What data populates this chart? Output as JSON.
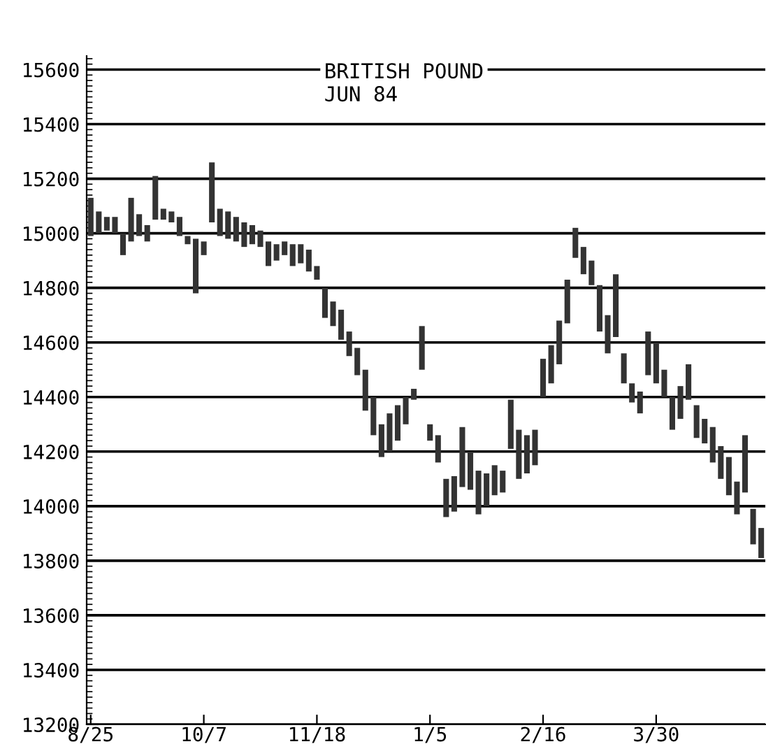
{
  "chart_data": {
    "type": "bar",
    "title": "BRITISH POUND",
    "subtitle": "JUN 84",
    "categories": [
      "8/25",
      null,
      null,
      null,
      null,
      null,
      null,
      null,
      null,
      null,
      null,
      null,
      null,
      null,
      "10/7",
      null,
      null,
      null,
      null,
      null,
      null,
      null,
      null,
      null,
      null,
      null,
      null,
      null,
      "11/18",
      null,
      null,
      null,
      null,
      null,
      null,
      null,
      null,
      null,
      null,
      null,
      null,
      null,
      "1/5",
      null,
      null,
      null,
      null,
      null,
      null,
      null,
      null,
      null,
      null,
      null,
      null,
      null,
      "2/16",
      null,
      null,
      null,
      null,
      null,
      null,
      null,
      null,
      null,
      null,
      null,
      null,
      null,
      "3/30",
      null,
      null,
      null,
      null,
      null,
      null,
      null,
      null,
      null,
      null,
      null,
      null,
      null
    ],
    "base": [
      14990,
      15000,
      15010,
      15000,
      14920,
      14970,
      14990,
      14970,
      15050,
      15050,
      15040,
      14990,
      14960,
      14780,
      14920,
      15040,
      14990,
      14980,
      14970,
      14950,
      14960,
      14950,
      14880,
      14900,
      14920,
      14880,
      14890,
      14860,
      14830,
      14690,
      14660,
      14610,
      14550,
      14480,
      14350,
      14260,
      14180,
      14200,
      14240,
      14300,
      14390,
      14500,
      14240,
      14160,
      13960,
      13980,
      14070,
      14060,
      13970,
      14000,
      14040,
      14050,
      14210,
      14100,
      14120,
      14150,
      14400,
      14450,
      14520,
      14670,
      14910,
      14850,
      14810,
      14640,
      14560,
      14620,
      14450,
      14380,
      14340,
      14480,
      14450,
      14400,
      14280,
      14320,
      14390,
      14250,
      14230,
      14160,
      14100,
      14040,
      13970,
      14050,
      13860,
      13810
    ],
    "values": [
      140,
      80,
      50,
      60,
      80,
      160,
      80,
      60,
      160,
      40,
      40,
      70,
      30,
      200,
      50,
      220,
      100,
      100,
      90,
      90,
      70,
      60,
      90,
      60,
      50,
      80,
      70,
      80,
      50,
      110,
      90,
      110,
      90,
      100,
      150,
      140,
      120,
      140,
      130,
      100,
      40,
      160,
      60,
      100,
      140,
      130,
      220,
      140,
      160,
      120,
      110,
      80,
      180,
      180,
      140,
      130,
      140,
      140,
      160,
      160,
      110,
      100,
      90,
      170,
      140,
      230,
      110,
      70,
      80,
      160,
      150,
      100,
      120,
      120,
      130,
      120,
      90,
      130,
      120,
      140,
      120,
      210,
      130,
      110
    ],
    "color": "#333333",
    "ylim": [
      13200,
      15650
    ],
    "yticks": [
      13200,
      13400,
      13600,
      13800,
      14000,
      14200,
      14400,
      14600,
      14800,
      15000,
      15200,
      15400,
      15600
    ],
    "grid": "y"
  }
}
